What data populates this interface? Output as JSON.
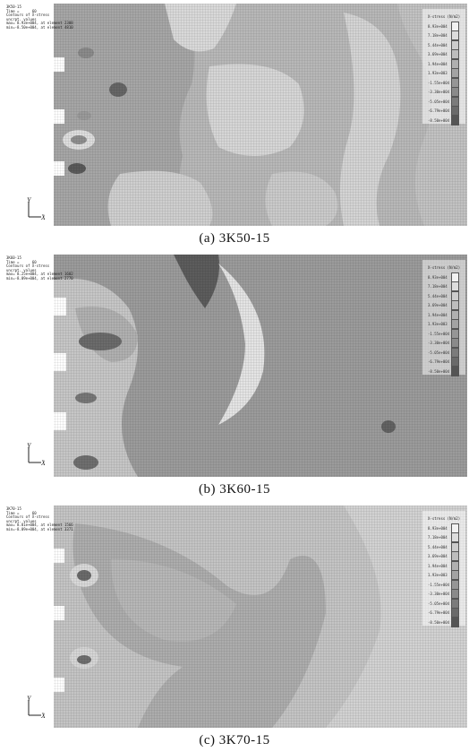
{
  "panels": [
    {
      "id": "a",
      "caption": "(a) 3K50-15",
      "header": "3K50-15\nTime =      60\nContours of X-stress\nuncrpt. values\nmax= 8.93e+004, at element 2308\nmin=-8.50e+004, at element 4810",
      "legend_title": "X-stress  (N/m2)"
    },
    {
      "id": "b",
      "caption": "(b) 3K60-15",
      "header": "3K60-15\nTime =      60\nContours of X-stress\nuncrpt. values\nmax= 8.25e+004, at element 1602\nmin=-8.09e+004, at element 2770",
      "legend_title": "X-stress  (N/m2)"
    },
    {
      "id": "c",
      "caption": "(c) 3K70-15",
      "header": "3K70-15\nTime =      60\nContours of X-stress\nuncrpt. values\nmax= 8.81e+004, at element 1566\nmin=-8.09e+004, at element 3371",
      "legend_title": "X-stress  (N/m2)"
    }
  ],
  "legend_values": [
    "8.93e+004",
    "7.18e+004",
    "5.44e+004",
    "3.69e+004",
    "1.94e+004",
    "1.93e+003",
    "-1.55e+004",
    "-3.30e+004",
    "-5.05e+004",
    "-6.79e+004",
    "-8.50e+004"
  ],
  "legend_colors": [
    "#f2f2f2",
    "#dddddd",
    "#cccccc",
    "#bdbdbd",
    "#b0b0b0",
    "#a3a3a3",
    "#969696",
    "#8a8a8a",
    "#7b7b7b",
    "#6a6a6a",
    "#555555"
  ],
  "axis": {
    "y": "Y",
    "x": "X"
  }
}
